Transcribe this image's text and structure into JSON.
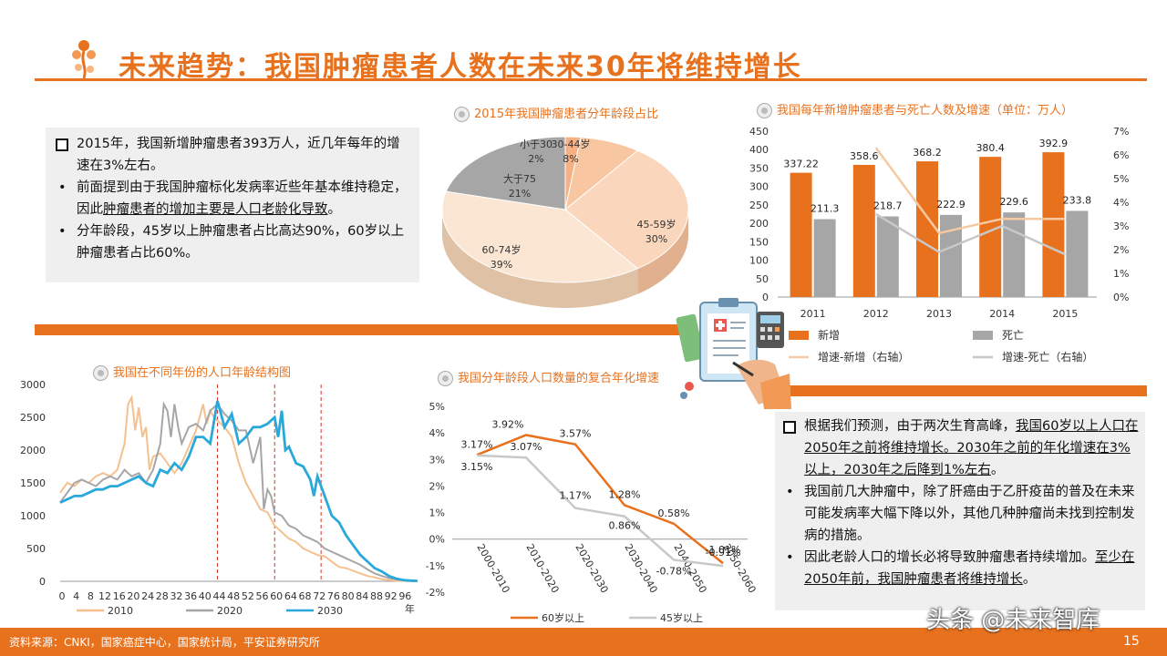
{
  "title": "未来趋势：我国肿瘤患者人数在未来30年将维持增长",
  "footer": {
    "source": "资料来源：CNKI，国家癌症中心，国家统计局，平安证券研究所",
    "page": "15",
    "watermark": "头条 @未来智库"
  },
  "textbox1": {
    "lead": "2015年，我国新增肿瘤患者393万人，近几年每年的增速在3%左右。",
    "b1_pre": "前面提到由于我国肿瘤标化发病率近些年基本维持稳定，因此",
    "b1_ul": "肿瘤患者的增加主要是人口老龄化导致",
    "b1_post": "。",
    "b2": "分年龄段，45岁以上肿瘤患者占比高达90%，60岁以上肿瘤患者占比60%。"
  },
  "textbox2": {
    "lead_pre": "根据我们预测，由于两次生育高峰，",
    "lead_ul1": "我国60岁以上人口在2050年之前将维持增长。",
    "lead_ul2": "2030年之前的年化增速在3%以上，2030年之后降到1%左右",
    "lead_post": "。",
    "b1": "我国前几大肿瘤中，除了肝癌由于乙肝疫苗的普及在未来可能发病率大幅下降以外，其他几种肿瘤尚未找到控制发病的措施。",
    "b2_pre": "因此老龄人口的增长必将导致肿瘤患者持续增加。",
    "b2_ul": "至少在2050年前，我国肿瘤患者将维持增长",
    "b2_post": "。"
  },
  "colors": {
    "accent": "#e8711d",
    "gray": "#a6a6a6",
    "light_orange": "#f7c9a3"
  },
  "chart_data": [
    {
      "type": "pie",
      "title": "2015年我国肿瘤患者分年龄段占比",
      "slices": [
        {
          "label": "小于30",
          "value": 2,
          "display": "2%",
          "color": "#f5b184"
        },
        {
          "label": "30-44岁",
          "value": 8,
          "display": "8%",
          "color": "#f8c7a2"
        },
        {
          "label": "45-59岁",
          "value": 30,
          "display": "30%",
          "color": "#f9d6bc"
        },
        {
          "label": "60-74岁",
          "value": 39,
          "display": "39%",
          "color": "#fbe6d4"
        },
        {
          "label": "大于75",
          "value": 21,
          "display": "21%",
          "color": "#a6a6a6"
        }
      ]
    },
    {
      "type": "bar",
      "title": "我国每年新增肿瘤患者与死亡人数及增速（单位：万人）",
      "categories": [
        "2011",
        "2012",
        "2013",
        "2014",
        "2015"
      ],
      "series": [
        {
          "name": "新增",
          "values": [
            337.22,
            358.6,
            368.2,
            380.4,
            392.9
          ],
          "labels": [
            "337.22",
            "358.6",
            "368.2",
            "380.4",
            "392.9"
          ],
          "color": "#e8711d"
        },
        {
          "name": "死亡",
          "values": [
            211.3,
            218.7,
            222.9,
            229.6,
            233.8
          ],
          "labels": [
            "211.3",
            "218.7",
            "222.9",
            "229.6",
            "233.8"
          ],
          "color": "#a6a6a6"
        },
        {
          "name": "增速-新增（右轴）",
          "values": [
            null,
            6.3,
            2.7,
            3.3,
            3.3
          ],
          "axis": "right",
          "color": "#f7c9a3"
        },
        {
          "name": "增速-死亡（右轴）",
          "values": [
            null,
            3.5,
            1.9,
            3.0,
            1.8
          ],
          "axis": "right",
          "color": "#c8c8c8"
        }
      ],
      "ylim": [
        0,
        450
      ],
      "yticks": [
        "0",
        "50",
        "100",
        "150",
        "200",
        "250",
        "300",
        "350",
        "400",
        "450"
      ],
      "y2lim": [
        0,
        7
      ],
      "y2ticks": [
        "0%",
        "1%",
        "2%",
        "3%",
        "4%",
        "5%",
        "6%",
        "7%"
      ]
    },
    {
      "type": "line",
      "title": "我国在不同年份的人口年龄结构图",
      "xticks": [
        "0",
        "4",
        "8",
        "12",
        "16",
        "20",
        "24",
        "28",
        "32",
        "36",
        "40",
        "44",
        "48",
        "52",
        "56",
        "60",
        "64",
        "68",
        "72",
        "76",
        "80",
        "84",
        "88",
        "92",
        "96"
      ],
      "x_unit": "年",
      "yticks": [
        "0",
        "500",
        "1000",
        "1500",
        "2000",
        "2500",
        "3000"
      ],
      "ylim": [
        0,
        3000
      ],
      "xlim": [
        0,
        100
      ],
      "markers": [
        44,
        60,
        73
      ],
      "series": [
        {
          "name": "2010",
          "color": "#f5c08e",
          "x": [
            0,
            2,
            4,
            6,
            8,
            10,
            12,
            14,
            16,
            18,
            19,
            20,
            21,
            22,
            23,
            24,
            25,
            26,
            28,
            30,
            32,
            34,
            36,
            38,
            40,
            41,
            42,
            43,
            44,
            46,
            48,
            50,
            52,
            54,
            56,
            58,
            60,
            62,
            64,
            66,
            68,
            70,
            72,
            74,
            76,
            78,
            80,
            82,
            84,
            86,
            88,
            90,
            92,
            94,
            96,
            98,
            100
          ],
          "y": [
            1350,
            1500,
            1450,
            1550,
            1500,
            1600,
            1650,
            1600,
            1700,
            2100,
            2700,
            2800,
            2300,
            2650,
            2200,
            2350,
            1700,
            1900,
            1950,
            1800,
            1650,
            1800,
            2050,
            2300,
            2700,
            2400,
            2600,
            2500,
            2450,
            2350,
            2200,
            1800,
            1500,
            1300,
            1100,
            1050,
            850,
            750,
            650,
            600,
            500,
            450,
            400,
            380,
            300,
            220,
            200,
            160,
            120,
            80,
            60,
            30,
            20,
            10,
            5,
            3,
            2
          ]
        },
        {
          "name": "2020",
          "color": "#a6a6a6",
          "x": [
            0,
            2,
            4,
            6,
            8,
            10,
            12,
            14,
            16,
            18,
            20,
            22,
            24,
            26,
            28,
            29,
            30,
            31,
            32,
            33,
            34,
            36,
            38,
            40,
            42,
            44,
            46,
            48,
            50,
            52,
            54,
            56,
            57,
            58,
            59,
            60,
            62,
            64,
            66,
            68,
            70,
            72,
            74,
            76,
            78,
            80,
            82,
            84,
            86,
            88,
            90,
            92,
            94,
            96,
            98,
            100
          ],
          "y": [
            1200,
            1350,
            1500,
            1550,
            1500,
            1450,
            1550,
            1600,
            1550,
            1700,
            1600,
            1650,
            1500,
            1700,
            2100,
            2700,
            2600,
            2200,
            2700,
            2350,
            2100,
            2350,
            2400,
            2300,
            2600,
            2700,
            2550,
            2450,
            2300,
            2300,
            1800,
            2200,
            1100,
            1400,
            1300,
            1050,
            1000,
            850,
            800,
            700,
            650,
            600,
            500,
            450,
            400,
            350,
            300,
            250,
            180,
            120,
            80,
            50,
            30,
            15,
            8,
            3
          ]
        },
        {
          "name": "2030",
          "color": "#29a8dc",
          "x": [
            0,
            2,
            4,
            6,
            8,
            10,
            12,
            14,
            16,
            18,
            20,
            22,
            24,
            26,
            28,
            30,
            32,
            34,
            36,
            38,
            40,
            42,
            44,
            46,
            48,
            50,
            52,
            54,
            56,
            58,
            60,
            61,
            62,
            63,
            64,
            66,
            68,
            70,
            71,
            72,
            74,
            76,
            78,
            80,
            82,
            84,
            86,
            88,
            90,
            92,
            94,
            96,
            98,
            100
          ],
          "y": [
            1200,
            1250,
            1300,
            1300,
            1350,
            1400,
            1400,
            1450,
            1450,
            1500,
            1550,
            1600,
            1500,
            1450,
            1700,
            1650,
            1800,
            1700,
            1900,
            2200,
            2200,
            2100,
            2750,
            2350,
            2550,
            2100,
            2200,
            2350,
            2350,
            2400,
            2500,
            2200,
            2600,
            2000,
            2050,
            1800,
            1750,
            1550,
            1300,
            1600,
            1300,
            1000,
            900,
            700,
            550,
            400,
            300,
            200,
            150,
            80,
            40,
            20,
            10,
            5
          ]
        }
      ]
    },
    {
      "type": "line",
      "title": "我国分年龄段人口数量的复合年化增速",
      "categories": [
        "2000-2010",
        "2010-2020",
        "2020-2030",
        "2030-2040",
        "2040-2050",
        "2050-2060"
      ],
      "series": [
        {
          "name": "60岁以上",
          "values": [
            3.17,
            3.92,
            3.57,
            1.28,
            0.58,
            -0.91
          ],
          "labels": [
            "3.17%",
            "3.92%",
            "3.57%",
            "1.28%",
            "0.58%",
            "-0.91%"
          ],
          "color": "#e8711d"
        },
        {
          "name": "45岁以上",
          "values": [
            3.15,
            3.07,
            1.17,
            0.86,
            -0.78,
            -1.01
          ],
          "labels": [
            "3.15%",
            "3.07%",
            "1.17%",
            "0.86%",
            "-0.78%",
            "-1.01%"
          ],
          "color": "#c8c8c8"
        }
      ],
      "ylim": [
        -2,
        5
      ],
      "yticks": [
        "-2%",
        "-1%",
        "0%",
        "1%",
        "2%",
        "3%",
        "4%",
        "5%"
      ]
    }
  ]
}
